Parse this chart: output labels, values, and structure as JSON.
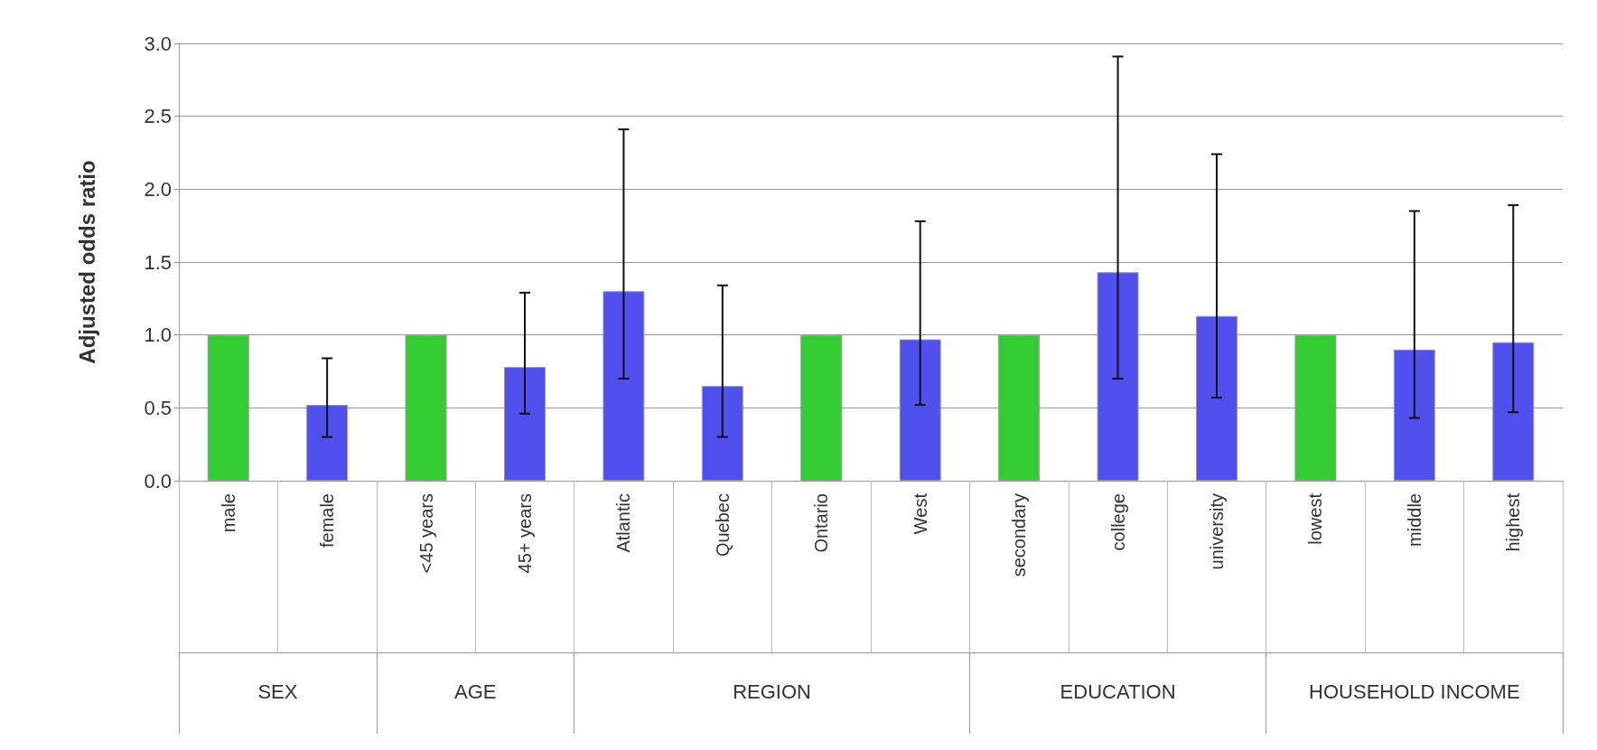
{
  "chart_data": {
    "type": "bar",
    "ylabel": "Adjusted odds ratio",
    "categories": [
      "male",
      "female",
      "<45 years",
      "45+ years",
      "Atlantic",
      "Quebec",
      "Ontario",
      "West",
      "secondary",
      "college",
      "university",
      "lowest",
      "middle",
      "highest"
    ],
    "values": [
      1.0,
      0.52,
      1.0,
      0.78,
      1.3,
      0.65,
      1.0,
      0.97,
      1.0,
      1.43,
      1.13,
      1.0,
      0.9,
      0.95
    ],
    "colors": [
      "#33cc33",
      "#5050ee",
      "#33cc33",
      "#5050ee",
      "#5050ee",
      "#5050ee",
      "#33cc33",
      "#5050ee",
      "#33cc33",
      "#5050ee",
      "#5050ee",
      "#33cc33",
      "#5050ee",
      "#5050ee"
    ],
    "errors": [
      null,
      [
        0.3,
        0.84
      ],
      null,
      [
        0.46,
        1.29
      ],
      [
        0.7,
        2.41
      ],
      [
        0.3,
        1.34
      ],
      null,
      [
        0.52,
        1.78
      ],
      null,
      [
        0.7,
        2.91
      ],
      [
        0.57,
        2.24
      ],
      null,
      [
        0.43,
        1.85
      ],
      [
        0.47,
        1.89
      ]
    ],
    "ylim": [
      0,
      3
    ],
    "yticks": [
      {
        "value": 0,
        "label": "0.0"
      },
      {
        "value": 0.5,
        "label": "0.5"
      },
      {
        "value": 1,
        "label": "1.0"
      },
      {
        "value": 1.5,
        "label": "1.5"
      },
      {
        "value": 2,
        "label": "2.0"
      },
      {
        "value": 2.5,
        "label": "2.5"
      },
      {
        "value": 3,
        "label": "3.0"
      }
    ],
    "grid": "y",
    "annotations": [
      "SEX",
      "AGE",
      "REGION",
      "EDUCATION",
      "HOUSEHOLD INCOME"
    ]
  }
}
